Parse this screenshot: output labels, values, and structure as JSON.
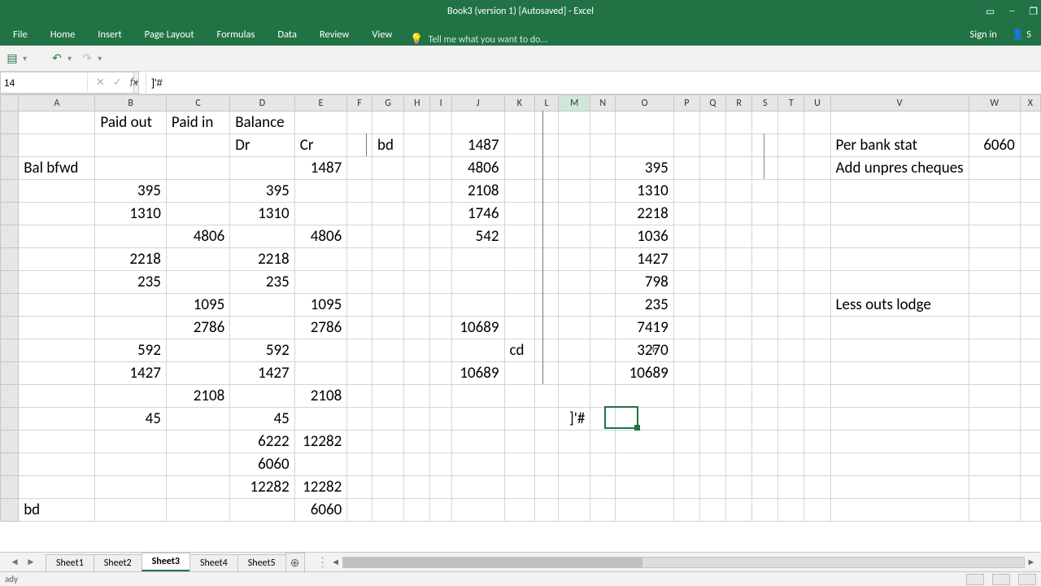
{
  "window": {
    "title": "Book3 (version 1) [Autosaved] - Excel",
    "signin": "Sign in"
  },
  "ribbon_tabs": [
    "File",
    "Home",
    "Insert",
    "Page Layout",
    "Formulas",
    "Data",
    "Review",
    "View"
  ],
  "tell_me": "Tell me what you want to do...",
  "name_box": "14",
  "formula_bar": "]'#",
  "columns": [
    {
      "label": "A",
      "w": 100
    },
    {
      "label": "B",
      "w": 92
    },
    {
      "label": "C",
      "w": 84
    },
    {
      "label": "D",
      "w": 82
    },
    {
      "label": "E",
      "w": 66
    },
    {
      "label": "F",
      "w": 38
    },
    {
      "label": "G",
      "w": 42
    },
    {
      "label": "H",
      "w": 40
    },
    {
      "label": "I",
      "w": 32
    },
    {
      "label": "J",
      "w": 66
    },
    {
      "label": "K",
      "w": 40
    },
    {
      "label": "L",
      "w": 36
    },
    {
      "label": "M",
      "w": 42
    },
    {
      "label": "N",
      "w": 38
    },
    {
      "label": "O",
      "w": 76
    },
    {
      "label": "P",
      "w": 40
    },
    {
      "label": "Q",
      "w": 40
    },
    {
      "label": "R",
      "w": 40
    },
    {
      "label": "S",
      "w": 40
    },
    {
      "label": "T",
      "w": 40
    },
    {
      "label": "U",
      "w": 40
    },
    {
      "label": "V",
      "w": 74
    },
    {
      "label": "W",
      "w": 68
    },
    {
      "label": "X",
      "w": 30
    }
  ],
  "active_col_index": 12,
  "rows": [
    {
      "h": 28,
      "cells": {
        "A": {
          "v": "",
          "t": "txt"
        },
        "B": {
          "v": "Paid out",
          "t": "txt"
        },
        "C": {
          "v": "Paid in",
          "t": "txt"
        },
        "D": {
          "v": "Balance",
          "t": "txt"
        }
      }
    },
    {
      "h": 28,
      "cells": {
        "D": {
          "v": "Dr",
          "t": "txt"
        },
        "E": {
          "v": "Cr",
          "t": "txt"
        },
        "G": {
          "v": "bd",
          "t": "txt"
        },
        "J": {
          "v": "1487",
          "t": "num"
        },
        "V": {
          "v": "Per bank stat",
          "t": "txt"
        },
        "W": {
          "v": "6060",
          "t": "num"
        }
      }
    },
    {
      "h": 28,
      "cells": {
        "A": {
          "v": "Bal bfwd",
          "t": "txt"
        },
        "E": {
          "v": "1487",
          "t": "num"
        },
        "J": {
          "v": "4806",
          "t": "num"
        },
        "O": {
          "v": "395",
          "t": "num"
        },
        "V": {
          "v": "Add unpres cheques",
          "t": "txt"
        }
      }
    },
    {
      "h": 28,
      "cells": {
        "B": {
          "v": "395",
          "t": "num"
        },
        "D": {
          "v": "395",
          "t": "num"
        },
        "J": {
          "v": "2108",
          "t": "num"
        },
        "O": {
          "v": "1310",
          "t": "num"
        }
      }
    },
    {
      "h": 28,
      "cells": {
        "B": {
          "v": "1310",
          "t": "num"
        },
        "D": {
          "v": "1310",
          "t": "num"
        },
        "J": {
          "v": "1746",
          "t": "num"
        },
        "O": {
          "v": "2218",
          "t": "num"
        }
      }
    },
    {
      "h": 28,
      "cells": {
        "C": {
          "v": "4806",
          "t": "num"
        },
        "E": {
          "v": "4806",
          "t": "num"
        },
        "J": {
          "v": "542",
          "t": "num"
        },
        "O": {
          "v": "1036",
          "t": "num"
        }
      }
    },
    {
      "h": 28,
      "cells": {
        "B": {
          "v": "2218",
          "t": "num"
        },
        "D": {
          "v": "2218",
          "t": "num"
        },
        "O": {
          "v": "1427",
          "t": "num"
        }
      }
    },
    {
      "h": 28,
      "cells": {
        "B": {
          "v": "235",
          "t": "num"
        },
        "D": {
          "v": "235",
          "t": "num"
        },
        "O": {
          "v": "798",
          "t": "num"
        }
      }
    },
    {
      "h": 28,
      "cells": {
        "C": {
          "v": "1095",
          "t": "num"
        },
        "E": {
          "v": "1095",
          "t": "num"
        },
        "O": {
          "v": "235",
          "t": "num"
        },
        "V": {
          "v": "Less outs lodge",
          "t": "txt"
        }
      }
    },
    {
      "h": 28,
      "cells": {
        "C": {
          "v": "2786",
          "t": "num"
        },
        "E": {
          "v": "2786",
          "t": "num"
        },
        "J": {
          "v": "10689",
          "t": "num"
        },
        "O": {
          "v": "7419",
          "t": "num"
        }
      }
    },
    {
      "h": 28,
      "cells": {
        "B": {
          "v": "592",
          "t": "num"
        },
        "D": {
          "v": "592",
          "t": "num"
        },
        "K": {
          "v": "cd",
          "t": "txt"
        },
        "O": {
          "v": "3270",
          "t": "num"
        }
      }
    },
    {
      "h": 28,
      "cells": {
        "B": {
          "v": "1427",
          "t": "num"
        },
        "D": {
          "v": "1427",
          "t": "num"
        },
        "J": {
          "v": "10689",
          "t": "num"
        },
        "O": {
          "v": "10689",
          "t": "num"
        }
      }
    },
    {
      "h": 28,
      "cells": {
        "C": {
          "v": "2108",
          "t": "num"
        },
        "E": {
          "v": "2108",
          "t": "num"
        }
      }
    },
    {
      "h": 28,
      "cells": {
        "B": {
          "v": "45",
          "t": "num"
        },
        "D": {
          "v": "45",
          "t": "num"
        },
        "M": {
          "v": "]'#",
          "t": "num"
        }
      }
    },
    {
      "h": 28,
      "cells": {
        "D": {
          "v": "6222",
          "t": "num"
        },
        "E": {
          "v": "12282",
          "t": "num"
        }
      }
    },
    {
      "h": 28,
      "cells": {
        "D": {
          "v": "6060",
          "t": "num"
        }
      }
    },
    {
      "h": 28,
      "cells": {
        "D": {
          "v": "12282",
          "t": "num"
        },
        "E": {
          "v": "12282",
          "t": "num"
        }
      }
    },
    {
      "h": 28,
      "cells": {
        "A": {
          "v": "bd",
          "t": "txt"
        },
        "E": {
          "v": "6060",
          "t": "num"
        }
      }
    }
  ],
  "range_outline": {
    "from_col": "F",
    "to_col": "P",
    "from_row": 1,
    "to_row": 11,
    "visual_cols": [
      "F",
      "P"
    ]
  },
  "active_cell": {
    "col": "M",
    "row": 14
  },
  "cursor_pos": {
    "col": "N",
    "row": 11
  },
  "sheets": [
    "Sheet1",
    "Sheet2",
    "Sheet3",
    "Sheet4",
    "Sheet5"
  ],
  "active_sheet": 2,
  "status": "ady"
}
